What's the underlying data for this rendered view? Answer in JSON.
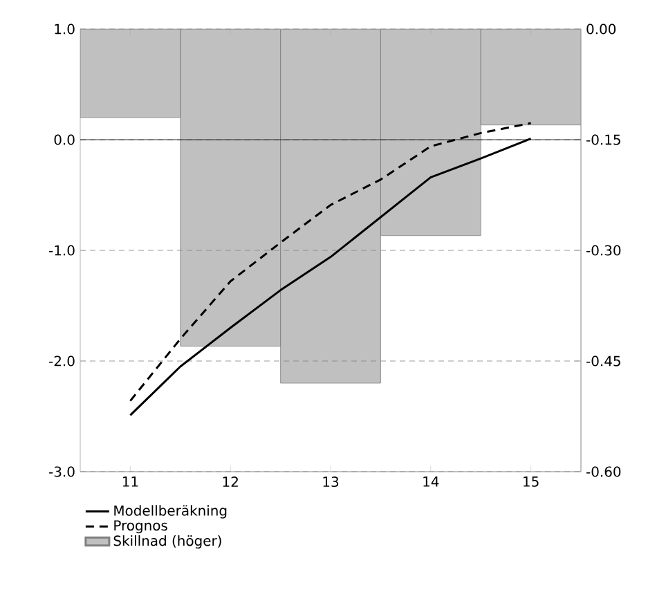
{
  "chart_data": {
    "type": "line",
    "xlim": [
      10.5,
      15.5
    ],
    "xticks": [
      11,
      12,
      13,
      14,
      15
    ],
    "ylim": [
      -3,
      1
    ],
    "yticks": [
      {
        "value": -3,
        "label": "-3.0"
      },
      {
        "value": -2,
        "label": "-2.0"
      },
      {
        "value": -1,
        "label": "-1.0"
      },
      {
        "value": 0,
        "label": "0.0"
      },
      {
        "value": 1,
        "label": "1.0"
      }
    ],
    "y2lim": [
      -0.6,
      0
    ],
    "y2ticks": [
      {
        "value": -0.6,
        "label": "-0.60"
      },
      {
        "value": -0.45,
        "label": "-0.45"
      },
      {
        "value": -0.3,
        "label": "-0.30"
      },
      {
        "value": -0.15,
        "label": "-0.15"
      },
      {
        "value": 0,
        "label": "0.00"
      }
    ],
    "grid": "y",
    "legend": "bottom",
    "ref_lines": [
      {
        "axis": "y",
        "value": 0,
        "color": "#000000",
        "line_style": "solid"
      }
    ],
    "series": [
      {
        "name": "Modellberäkning",
        "color": "#000000",
        "line_style": "solid",
        "x": [
          11,
          11.5,
          12,
          12.5,
          13,
          13.5,
          14,
          14.5,
          15
        ],
        "values": [
          -2.49,
          -2.05,
          -1.7,
          -1.36,
          -1.06,
          -0.7,
          -0.34,
          -0.17,
          0.01
        ]
      },
      {
        "name": "Prognos",
        "color": "#000000",
        "line_style": "dashed",
        "x": [
          11,
          11.5,
          12,
          12.5,
          13,
          13.5,
          14,
          14.5,
          15
        ],
        "values": [
          -2.36,
          -1.8,
          -1.28,
          -0.93,
          -0.59,
          -0.36,
          -0.06,
          0.06,
          0.15
        ]
      },
      {
        "name": "Skillnad (höger)",
        "type": "bar",
        "axis": "y2",
        "color": "#c0c0c0",
        "x": [
          11,
          12,
          13,
          14,
          15
        ],
        "values": [
          -0.12,
          -0.43,
          -0.48,
          -0.28,
          -0.13
        ]
      }
    ]
  }
}
